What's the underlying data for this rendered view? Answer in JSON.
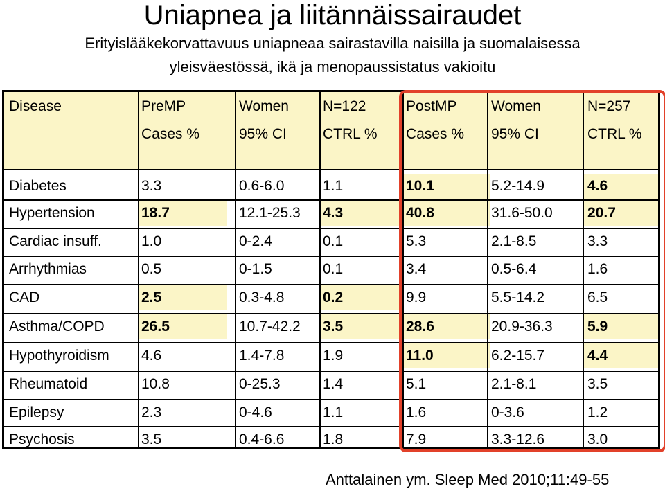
{
  "title": "Uniapnea ja liitännäissairaudet",
  "subtitle_line1": "Erityislääkekorvattavuus uniapneaa sairastavilla naisilla ja suomalaisessa",
  "subtitle_line2": "yleisväestössä, ikä ja menopaussistatus vakioitu",
  "header_row1": [
    "Disease",
    "PreMP",
    "Women",
    "N=122",
    "PostMP",
    "Women",
    "N=257"
  ],
  "header_row2": [
    "",
    "Cases %",
    "95% CI",
    "CTRL %",
    "Cases %",
    "95% CI",
    "CTRL %"
  ],
  "rows": [
    {
      "cells": [
        "Diabetes",
        "3.3",
        "0.6-6.0",
        "1.1",
        "10.1",
        "5.2-14.9",
        "4.6"
      ],
      "bold": [
        false,
        false,
        false,
        false,
        true,
        false,
        true
      ],
      "highlight": [
        false,
        false,
        false,
        false,
        true,
        false,
        true
      ]
    },
    {
      "cells": [
        "Hypertension",
        "18.7",
        "12.1-25.3",
        "4.3",
        "40.8",
        "31.6-50.0",
        "20.7"
      ],
      "bold": [
        false,
        true,
        false,
        true,
        true,
        false,
        true
      ],
      "highlight": [
        false,
        true,
        false,
        true,
        true,
        false,
        true
      ]
    },
    {
      "cells": [
        "Cardiac insuff.",
        "1.0",
        "0-2.4",
        "0.1",
        "5.3",
        "2.1-8.5",
        "3.3"
      ],
      "bold": [
        false,
        false,
        false,
        false,
        false,
        false,
        false
      ],
      "highlight": [
        false,
        false,
        false,
        false,
        false,
        false,
        false
      ]
    },
    {
      "cells": [
        "Arrhythmias",
        "0.5",
        "0-1.5",
        "0.1",
        "3.4",
        "0.5-6.4",
        "1.6"
      ],
      "bold": [
        false,
        false,
        false,
        false,
        false,
        false,
        false
      ],
      "highlight": [
        false,
        false,
        false,
        false,
        false,
        false,
        false
      ]
    },
    {
      "cells": [
        "CAD",
        "2.5",
        "0.3-4.8",
        "0.2",
        "9.9",
        "5.5-14.2",
        "6.5"
      ],
      "bold": [
        false,
        true,
        false,
        true,
        false,
        false,
        false
      ],
      "highlight": [
        false,
        true,
        false,
        true,
        false,
        false,
        false
      ]
    },
    {
      "cells": [
        "Asthma/COPD",
        "26.5",
        "10.7-42.2",
        "3.5",
        "28.6",
        "20.9-36.3",
        "5.9"
      ],
      "bold": [
        false,
        true,
        false,
        true,
        true,
        false,
        true
      ],
      "highlight": [
        false,
        true,
        false,
        true,
        true,
        false,
        true
      ]
    },
    {
      "cells": [
        "Hypothyroidism",
        "4.6",
        "1.4-7.8",
        "1.9",
        "11.0",
        "6.2-15.7",
        "4.4"
      ],
      "bold": [
        false,
        false,
        false,
        false,
        true,
        false,
        true
      ],
      "highlight": [
        false,
        false,
        false,
        false,
        true,
        false,
        true
      ]
    },
    {
      "cells": [
        "Rheumatoid",
        "10.8",
        "0-25.3",
        "1.4",
        "5.1",
        "2.1-8.1",
        "3.5"
      ],
      "bold": [
        false,
        false,
        false,
        false,
        false,
        false,
        false
      ],
      "highlight": [
        false,
        false,
        false,
        false,
        false,
        false,
        false
      ]
    },
    {
      "cells": [
        "Epilepsy",
        "2.3",
        "0-4.6",
        "1.1",
        "1.6",
        "0-3.6",
        "1.2"
      ],
      "bold": [
        false,
        false,
        false,
        false,
        false,
        false,
        false
      ],
      "highlight": [
        false,
        false,
        false,
        false,
        false,
        false,
        false
      ]
    },
    {
      "cells": [
        "Psychosis",
        "3.5",
        "0.4-6.6",
        "1.8",
        "7.9",
        "3.3-12.6",
        "3.0"
      ],
      "bold": [
        false,
        false,
        false,
        false,
        false,
        false,
        false
      ],
      "highlight": [
        false,
        false,
        false,
        false,
        false,
        false,
        false
      ]
    }
  ],
  "source": "Anttalainen ym. Sleep Med 2010;11:49-55",
  "colors": {
    "header_band": "#fbf5c7",
    "cell_highlight": "#fbf5c7",
    "postmp_frame": "#e2412a"
  }
}
